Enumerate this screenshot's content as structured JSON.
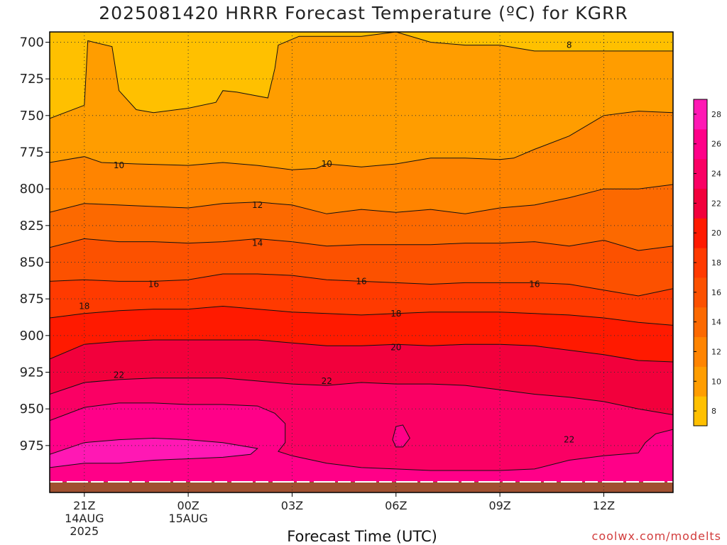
{
  "chart_data": {
    "type": "contour",
    "title": "2025081420 HRRR Forecast Temperature (ºC) for KGRR",
    "xlabel": "Forecast Time (UTC)",
    "ylabel": "",
    "y_reversed": true,
    "ylim": [
      1007,
      693
    ],
    "xlim_hours_from_start": [
      -1.0,
      17.0
    ],
    "y_ticks": [
      700,
      725,
      750,
      775,
      800,
      825,
      850,
      875,
      900,
      925,
      950,
      975
    ],
    "x_ticks": [
      {
        "label": "21Z",
        "sub": [
          "14AUG",
          "2025"
        ]
      },
      {
        "label": "00Z",
        "sub": [
          "15AUG"
        ]
      },
      {
        "label": "03Z",
        "sub": []
      },
      {
        "label": "06Z",
        "sub": []
      },
      {
        "label": "09Z",
        "sub": []
      },
      {
        "label": "12Z",
        "sub": []
      }
    ],
    "grid": true,
    "contour_levels": [
      8,
      10,
      12,
      14,
      16,
      18,
      20,
      22,
      24,
      26,
      28
    ],
    "contour_labels": [
      {
        "level": 8,
        "time": "11Z",
        "pressure": 702
      },
      {
        "level": 10,
        "time": "22Z",
        "pressure": 784
      },
      {
        "level": 10,
        "time": "04Z",
        "pressure": 783
      },
      {
        "level": 12,
        "time": "02Z",
        "pressure": 811
      },
      {
        "level": 14,
        "time": "02Z",
        "pressure": 837
      },
      {
        "level": 16,
        "time": "23Z",
        "pressure": 865
      },
      {
        "level": 16,
        "time": "05Z",
        "pressure": 863
      },
      {
        "level": 16,
        "time": "10Z",
        "pressure": 865
      },
      {
        "level": 18,
        "time": "21Z",
        "pressure": 880
      },
      {
        "level": 18,
        "time": "06Z",
        "pressure": 885
      },
      {
        "level": 20,
        "time": "06Z",
        "pressure": 908
      },
      {
        "level": 22,
        "time": "22Z",
        "pressure": 927
      },
      {
        "level": 22,
        "time": "04Z",
        "pressure": 931
      },
      {
        "level": 22,
        "time": "11Z",
        "pressure": 971
      }
    ],
    "colorbar": {
      "ticks": [
        8,
        10,
        12,
        14,
        16,
        18,
        20,
        22,
        24,
        26,
        28
      ],
      "colors": [
        "#ffc000",
        "#ff9d00",
        "#ff8400",
        "#fc6900",
        "#fc5100",
        "#ff3a00",
        "#ff1a00",
        "#f2003c",
        "#fa0064",
        "#ff0088",
        "#ff18b4"
      ]
    },
    "ground_color": "#a05030"
  },
  "watermark": "coolwx.com/modelts"
}
